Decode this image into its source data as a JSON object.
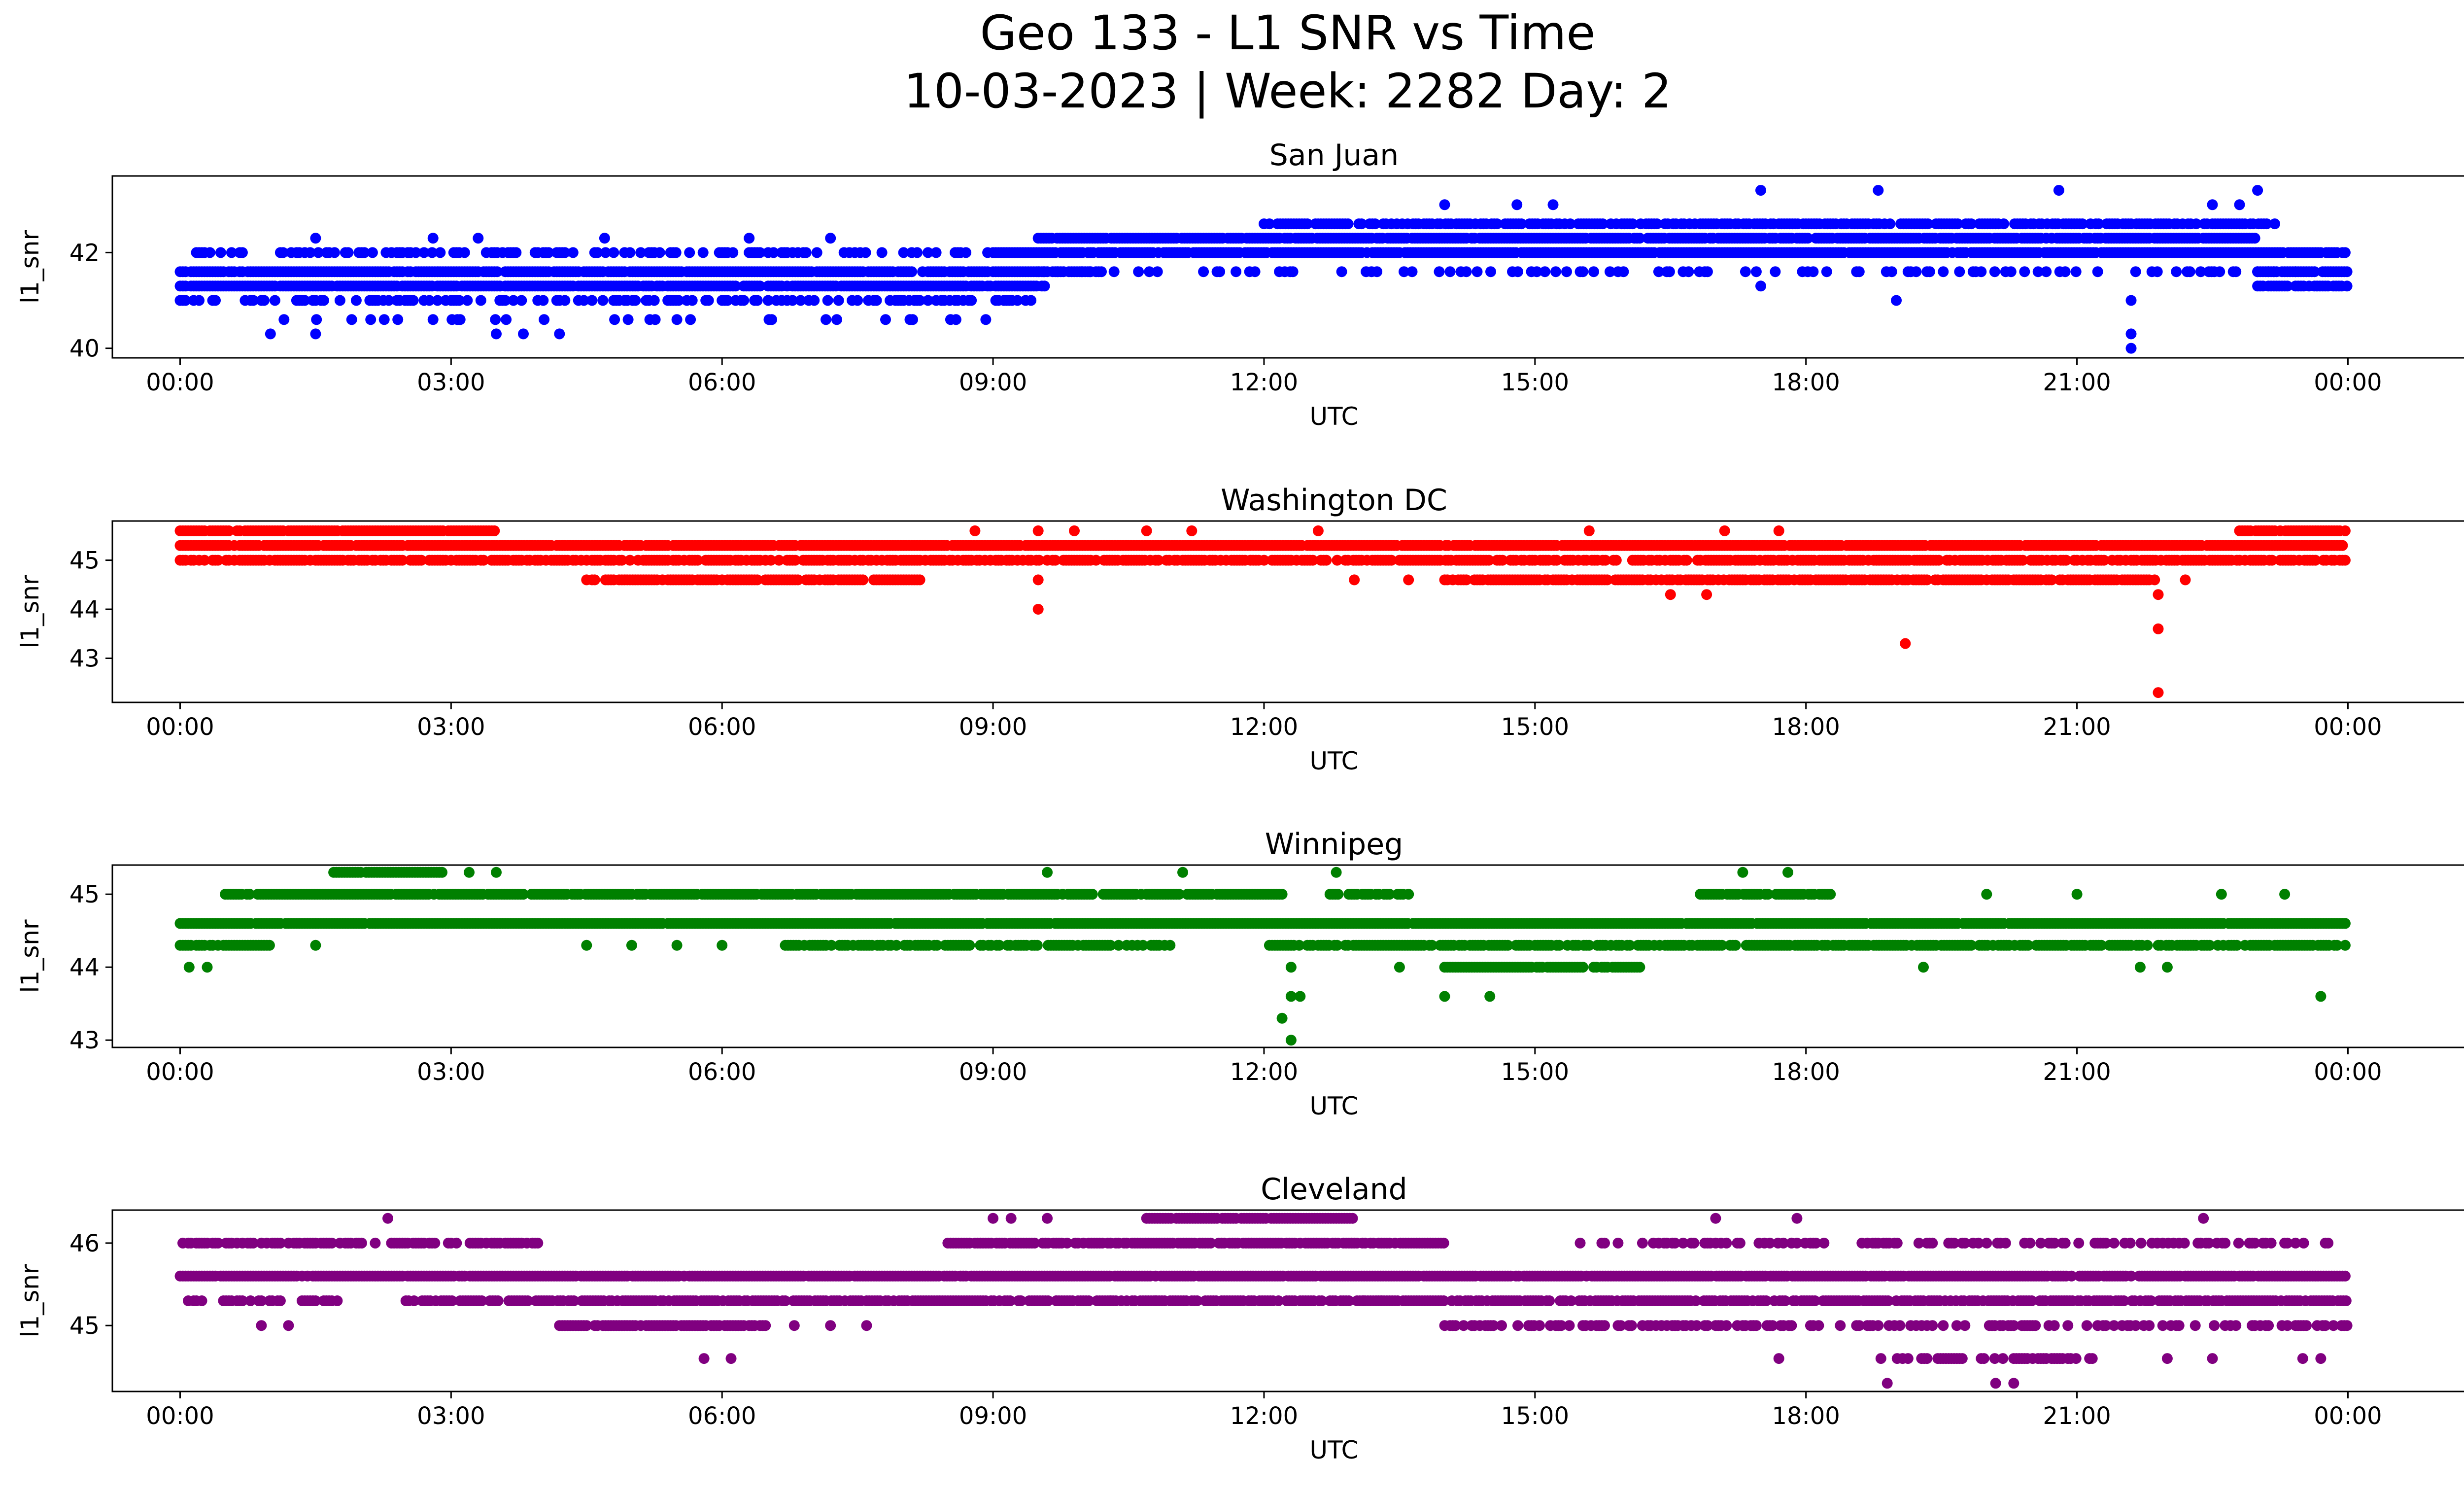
{
  "figure": {
    "title_line1": "Geo 133 - L1 SNR vs Time",
    "title_line2": "10-03-2023 | Week: 2282 Day: 2"
  },
  "chart_data": [
    {
      "type": "scatter",
      "title": "San Juan",
      "xlabel": "UTC",
      "ylabel": "l1_snr",
      "color": "#0000ff",
      "x_range_hours": [
        -0.75,
        26.3
      ],
      "x_ticks": [
        "00:00",
        "03:00",
        "06:00",
        "09:00",
        "12:00",
        "15:00",
        "18:00",
        "21:00",
        "00:00"
      ],
      "ylim": [
        39.8,
        43.6
      ],
      "y_ticks": [
        40,
        42
      ],
      "series": [
        {
          "base_levels": [
            {
              "y": 41.3,
              "t_start": 0.0,
              "t_end": 9.6,
              "density": 0.92
            },
            {
              "y": 41.6,
              "t_start": 0.0,
              "t_end": 10.2,
              "density": 0.92
            },
            {
              "y": 42.0,
              "t_start": 0.0,
              "t_end": 9.2,
              "density": 0.35
            },
            {
              "y": 41.0,
              "t_start": 0.0,
              "t_end": 9.5,
              "density": 0.4
            },
            {
              "y": 40.6,
              "t_start": 1.0,
              "t_end": 9.0,
              "density": 0.12
            },
            {
              "y": 42.0,
              "t_start": 9.0,
              "t_end": 24.0,
              "density": 0.95
            },
            {
              "y": 42.3,
              "t_start": 9.5,
              "t_end": 23.0,
              "density": 0.95
            },
            {
              "y": 41.6,
              "t_start": 9.5,
              "t_end": 24.0,
              "density": 0.25
            },
            {
              "y": 42.6,
              "t_start": 12.0,
              "t_end": 23.2,
              "density": 0.75
            },
            {
              "y": 41.6,
              "t_start": 23.0,
              "t_end": 24.0,
              "density": 0.95
            },
            {
              "y": 41.3,
              "t_start": 23.0,
              "t_end": 24.0,
              "density": 0.9
            }
          ]
        },
        {
          "points": [
            [
              1.0,
              40.3
            ],
            [
              1.5,
              40.3
            ],
            [
              3.5,
              40.3
            ],
            [
              3.8,
              40.3
            ],
            [
              4.2,
              40.3
            ],
            [
              1.5,
              42.3
            ],
            [
              2.8,
              42.3
            ],
            [
              3.3,
              42.3
            ],
            [
              4.7,
              42.3
            ],
            [
              7.2,
              42.3
            ],
            [
              6.3,
              42.3
            ],
            [
              14.0,
              43.0
            ],
            [
              14.8,
              43.0
            ],
            [
              15.2,
              43.0
            ],
            [
              17.5,
              43.3
            ],
            [
              18.8,
              43.3
            ],
            [
              20.8,
              43.3
            ],
            [
              17.5,
              41.3
            ],
            [
              19.0,
              41.0
            ],
            [
              21.6,
              41.0
            ],
            [
              21.6,
              40.3
            ],
            [
              21.6,
              40.0
            ],
            [
              22.5,
              43.0
            ],
            [
              22.8,
              43.0
            ],
            [
              23.0,
              43.3
            ]
          ]
        }
      ]
    },
    {
      "type": "scatter",
      "title": "Washington DC",
      "xlabel": "UTC",
      "ylabel": "l1_snr",
      "color": "#ff0000",
      "x_range_hours": [
        -0.75,
        26.3
      ],
      "x_ticks": [
        "00:00",
        "03:00",
        "06:00",
        "09:00",
        "12:00",
        "15:00",
        "18:00",
        "21:00",
        "00:00"
      ],
      "ylim": [
        42.1,
        45.8
      ],
      "y_ticks": [
        43,
        44,
        45
      ],
      "series": [
        {
          "base_levels": [
            {
              "y": 45.3,
              "t_start": 0.0,
              "t_end": 24.0,
              "density": 0.97
            },
            {
              "y": 45.6,
              "t_start": 0.0,
              "t_end": 3.5,
              "density": 0.92
            },
            {
              "y": 45.0,
              "t_start": 0.0,
              "t_end": 24.0,
              "density": 0.75
            },
            {
              "y": 44.6,
              "t_start": 4.5,
              "t_end": 8.2,
              "density": 0.85
            },
            {
              "y": 44.6,
              "t_start": 14.0,
              "t_end": 21.9,
              "density": 0.85
            },
            {
              "y": 45.6,
              "t_start": 22.8,
              "t_end": 24.0,
              "density": 0.9
            }
          ]
        },
        {
          "points": [
            [
              8.8,
              45.6
            ],
            [
              9.5,
              45.6
            ],
            [
              9.9,
              45.6
            ],
            [
              10.7,
              45.6
            ],
            [
              11.2,
              45.6
            ],
            [
              12.6,
              45.6
            ],
            [
              15.6,
              45.6
            ],
            [
              17.1,
              45.6
            ],
            [
              17.7,
              45.6
            ],
            [
              9.5,
              44.6
            ],
            [
              9.5,
              44.0
            ],
            [
              13.0,
              44.6
            ],
            [
              13.6,
              44.6
            ],
            [
              16.5,
              44.3
            ],
            [
              16.9,
              44.3
            ],
            [
              19.1,
              43.3
            ],
            [
              21.9,
              44.3
            ],
            [
              21.9,
              43.6
            ],
            [
              21.9,
              42.3
            ],
            [
              22.2,
              44.6
            ]
          ]
        }
      ]
    },
    {
      "type": "scatter",
      "title": "Winnipeg",
      "xlabel": "UTC",
      "ylabel": "l1_snr",
      "color": "#008000",
      "x_range_hours": [
        -0.75,
        26.3
      ],
      "x_ticks": [
        "00:00",
        "03:00",
        "06:00",
        "09:00",
        "12:00",
        "15:00",
        "18:00",
        "21:00",
        "00:00"
      ],
      "ylim": [
        42.9,
        45.4
      ],
      "y_ticks": [
        43,
        44,
        45
      ],
      "series": [
        {
          "base_levels": [
            {
              "y": 44.6,
              "t_start": 0.0,
              "t_end": 24.0,
              "density": 0.98
            },
            {
              "y": 45.0,
              "t_start": 0.5,
              "t_end": 12.2,
              "density": 0.9
            },
            {
              "y": 44.3,
              "t_start": 0.0,
              "t_end": 1.0,
              "density": 0.9
            },
            {
              "y": 44.3,
              "t_start": 6.7,
              "t_end": 11.0,
              "density": 0.65
            },
            {
              "y": 44.3,
              "t_start": 12.0,
              "t_end": 24.0,
              "density": 0.8
            },
            {
              "y": 45.3,
              "t_start": 1.7,
              "t_end": 2.9,
              "density": 0.95
            },
            {
              "y": 44.0,
              "t_start": 14.0,
              "t_end": 16.2,
              "density": 0.9
            },
            {
              "y": 45.0,
              "t_start": 16.8,
              "t_end": 18.3,
              "density": 0.9
            },
            {
              "y": 45.0,
              "t_start": 12.7,
              "t_end": 13.6,
              "density": 0.6
            }
          ]
        },
        {
          "points": [
            [
              0.1,
              44.0
            ],
            [
              0.3,
              44.0
            ],
            [
              1.5,
              44.3
            ],
            [
              4.5,
              44.3
            ],
            [
              5.0,
              44.3
            ],
            [
              5.5,
              44.3
            ],
            [
              6.0,
              44.3
            ],
            [
              3.2,
              45.3
            ],
            [
              3.5,
              45.3
            ],
            [
              9.6,
              45.3
            ],
            [
              11.1,
              45.3
            ],
            [
              12.8,
              45.3
            ],
            [
              17.3,
              45.3
            ],
            [
              17.8,
              45.3
            ],
            [
              12.3,
              44.0
            ],
            [
              12.3,
              43.6
            ],
            [
              12.2,
              43.3
            ],
            [
              12.3,
              43.0
            ],
            [
              12.4,
              43.6
            ],
            [
              14.0,
              43.6
            ],
            [
              14.5,
              43.6
            ],
            [
              13.5,
              44.0
            ],
            [
              19.3,
              44.0
            ],
            [
              20.0,
              45.0
            ],
            [
              21.0,
              45.0
            ],
            [
              22.6,
              45.0
            ],
            [
              23.3,
              45.0
            ],
            [
              23.7,
              43.6
            ],
            [
              21.7,
              44.0
            ],
            [
              22.0,
              44.0
            ]
          ]
        }
      ]
    },
    {
      "type": "scatter",
      "title": "Cleveland",
      "xlabel": "UTC",
      "ylabel": "l1_snr",
      "color": "#800080",
      "x_range_hours": [
        -0.75,
        26.3
      ],
      "x_ticks": [
        "00:00",
        "03:00",
        "06:00",
        "09:00",
        "12:00",
        "15:00",
        "18:00",
        "21:00",
        "00:00"
      ],
      "ylim": [
        44.2,
        46.4
      ],
      "y_ticks": [
        45,
        46
      ],
      "series": [
        {
          "base_levels": [
            {
              "y": 45.6,
              "t_start": 0.0,
              "t_end": 24.0,
              "density": 0.96
            },
            {
              "y": 45.3,
              "t_start": 2.5,
              "t_end": 24.0,
              "density": 0.8
            },
            {
              "y": 46.0,
              "t_start": 0.0,
              "t_end": 4.0,
              "density": 0.65
            },
            {
              "y": 46.0,
              "t_start": 8.5,
              "t_end": 14.0,
              "density": 0.85
            },
            {
              "y": 45.3,
              "t_start": 0.0,
              "t_end": 2.0,
              "density": 0.45
            },
            {
              "y": 45.0,
              "t_start": 4.2,
              "t_end": 6.5,
              "density": 0.9
            },
            {
              "y": 45.0,
              "t_start": 14.0,
              "t_end": 24.0,
              "density": 0.45
            },
            {
              "y": 46.0,
              "t_start": 15.5,
              "t_end": 23.9,
              "density": 0.35
            },
            {
              "y": 46.3,
              "t_start": 10.7,
              "t_end": 13.0,
              "density": 0.95
            },
            {
              "y": 44.6,
              "t_start": 18.8,
              "t_end": 20.0,
              "density": 0.5
            },
            {
              "y": 44.6,
              "t_start": 20.0,
              "t_end": 21.2,
              "density": 0.6
            }
          ]
        },
        {
          "points": [
            [
              0.9,
              45.0
            ],
            [
              1.2,
              45.0
            ],
            [
              2.3,
              46.3
            ],
            [
              9.0,
              46.3
            ],
            [
              9.2,
              46.3
            ],
            [
              9.6,
              46.3
            ],
            [
              17.0,
              46.3
            ],
            [
              17.9,
              46.3
            ],
            [
              22.4,
              46.3
            ],
            [
              5.8,
              44.6
            ],
            [
              6.1,
              44.6
            ],
            [
              17.7,
              44.6
            ],
            [
              22.0,
              44.6
            ],
            [
              22.5,
              44.6
            ],
            [
              23.5,
              44.6
            ],
            [
              23.7,
              44.6
            ],
            [
              18.9,
              44.3
            ],
            [
              20.1,
              44.3
            ],
            [
              20.3,
              44.3
            ],
            [
              6.8,
              45.0
            ],
            [
              7.2,
              45.0
            ],
            [
              7.6,
              45.0
            ],
            [
              9.3,
              45.3
            ],
            [
              9.7,
              45.3
            ],
            [
              10.3,
              45.3
            ],
            [
              13.1,
              45.3
            ],
            [
              13.3,
              45.3
            ],
            [
              10.8,
              45.3
            ]
          ]
        }
      ]
    }
  ]
}
